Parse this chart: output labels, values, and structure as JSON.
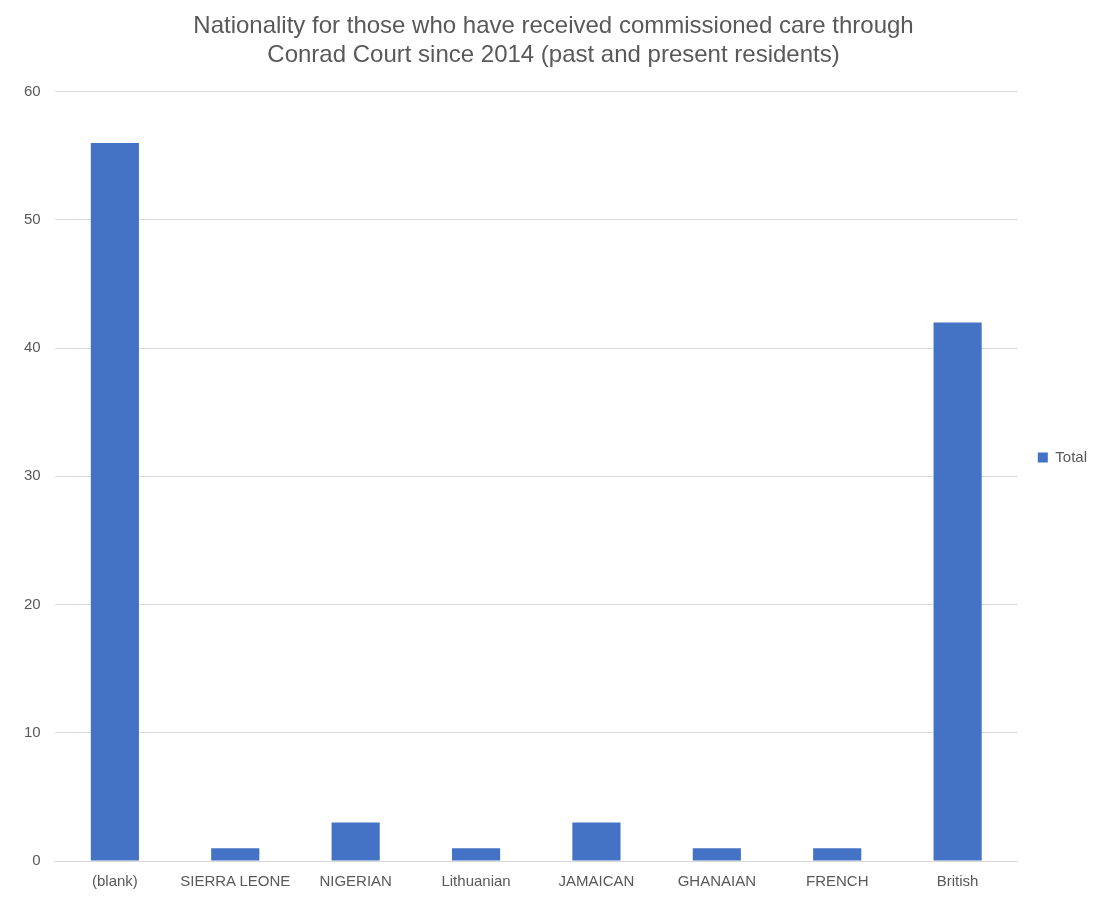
{
  "chart_data": {
    "type": "bar",
    "title": [
      "Nationality for those who have received commissioned care through",
      "Conrad Court since 2014 (past and present residents)"
    ],
    "categories": [
      "(blank)",
      "SIERRA LEONE",
      "NIGERIAN",
      "Lithuanian",
      "JAMAICAN",
      "GHANAIAN",
      "FRENCH",
      "British"
    ],
    "series": [
      {
        "name": "Total",
        "color": "#4472c4",
        "values": [
          56,
          1,
          3,
          1,
          3,
          1,
          1,
          42
        ]
      }
    ],
    "ylim": [
      0,
      60
    ],
    "yticks": [
      0,
      10,
      20,
      30,
      40,
      50,
      60
    ],
    "grid": "y",
    "legend": "right"
  }
}
